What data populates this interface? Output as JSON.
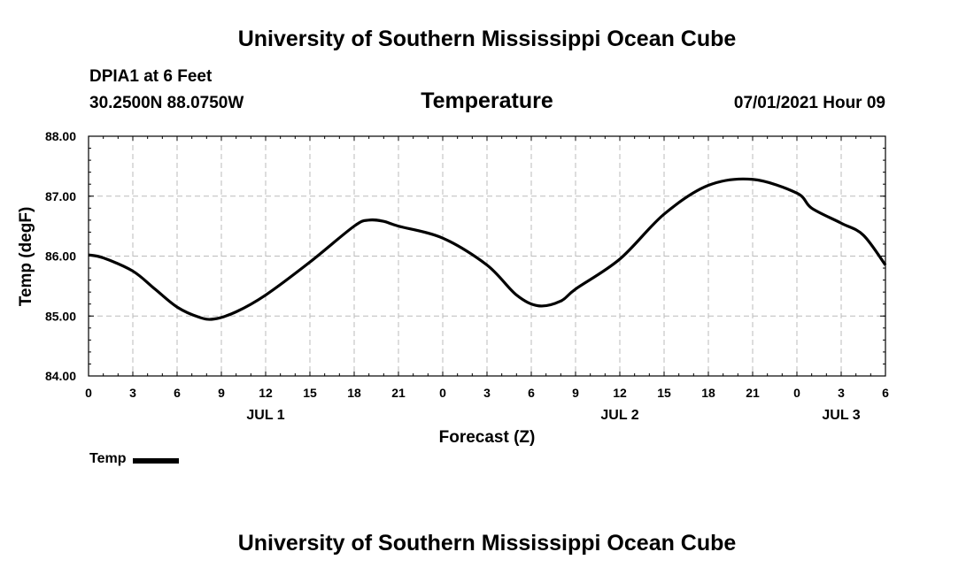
{
  "header": {
    "main_title": "University of Southern Mississippi Ocean Cube",
    "station": "DPIA1 at 6 Feet",
    "coords": "30.2500N  88.0750W",
    "plot_title": "Temperature",
    "datetime": "07/01/2021 Hour 09"
  },
  "footer": {
    "title": "University of Southern Mississippi Ocean Cube"
  },
  "legend": {
    "label": "Temp",
    "color": "#000000"
  },
  "chart_data": {
    "type": "line",
    "title": "Temperature",
    "xlabel": "Forecast (Z)",
    "ylabel": "Temp (degF)",
    "ylim": [
      84,
      88
    ],
    "xlim": [
      0,
      54
    ],
    "y_ticks": [
      "84.00",
      "85.00",
      "86.00",
      "87.00",
      "88.00"
    ],
    "y_tick_values": [
      84,
      85,
      86,
      87,
      88
    ],
    "x_tick_values": [
      0,
      3,
      6,
      9,
      12,
      15,
      18,
      21,
      24,
      27,
      30,
      33,
      36,
      39,
      42,
      45,
      48,
      51,
      54
    ],
    "x_tick_labels": [
      "0",
      "3",
      "6",
      "9",
      "12",
      "15",
      "18",
      "21",
      "0",
      "3",
      "6",
      "9",
      "12",
      "15",
      "18",
      "21",
      "0",
      "3",
      "6"
    ],
    "date_labels": [
      {
        "label": "JUL 1",
        "hour": 12
      },
      {
        "label": "JUL 2",
        "hour": 36
      },
      {
        "label": "JUL 3",
        "hour": 51
      }
    ],
    "grid": true,
    "series": [
      {
        "name": "Temp",
        "color": "#000000",
        "x": [
          0,
          1,
          3,
          4.5,
          6,
          7.5,
          8.5,
          10,
          12,
          15,
          18,
          19,
          20,
          21,
          24,
          27,
          29,
          30.5,
          32,
          33,
          36,
          39,
          42,
          45,
          48,
          49,
          51,
          52.5,
          54
        ],
        "values": [
          86.02,
          85.97,
          85.75,
          85.45,
          85.15,
          84.98,
          84.95,
          85.07,
          85.35,
          85.9,
          86.5,
          86.6,
          86.58,
          86.5,
          86.3,
          85.85,
          85.35,
          85.17,
          85.25,
          85.45,
          85.95,
          86.7,
          87.18,
          87.28,
          87.05,
          86.8,
          86.55,
          86.35,
          85.85
        ]
      }
    ]
  }
}
